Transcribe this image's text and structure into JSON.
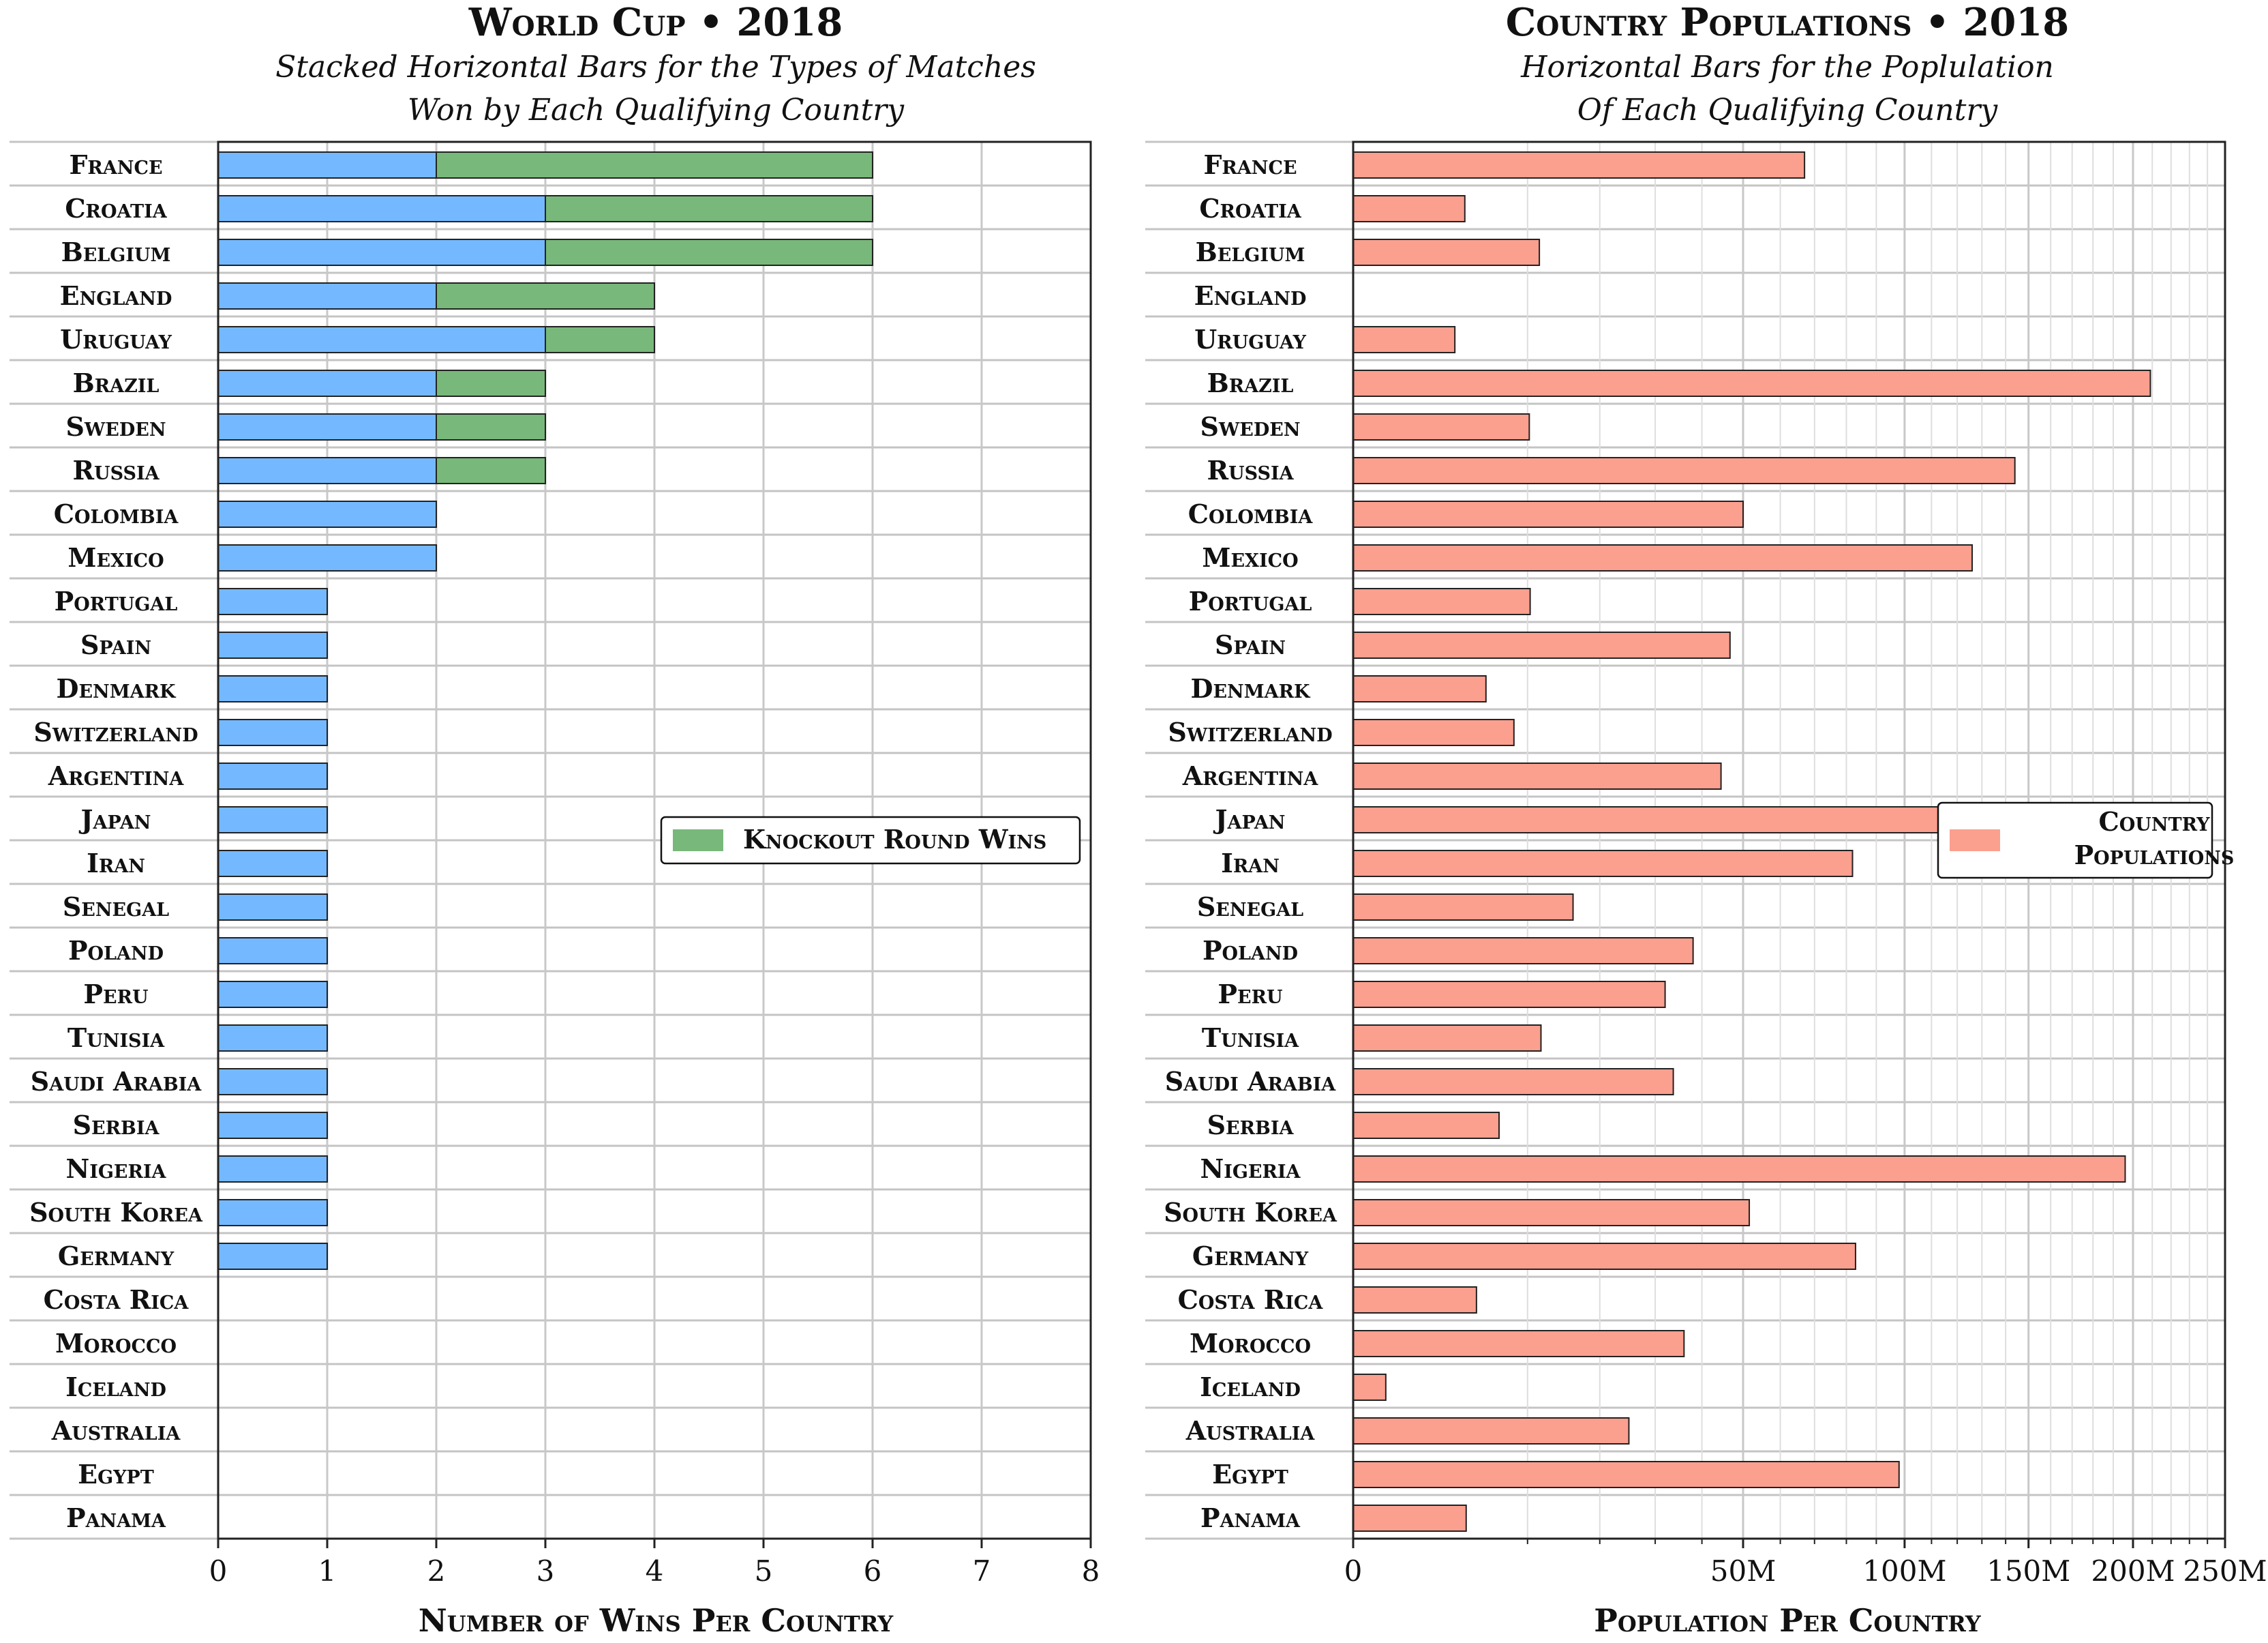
{
  "chart_data": [
    {
      "type": "bar",
      "orientation": "horizontal",
      "stacked": true,
      "title_main": "World Cup",
      "title_year": "2018",
      "subtitle_line1": "Stacked Horizontal Bars for the Types of Matches",
      "subtitle_line2": "Won by Each Qualifying Country",
      "xlabel": "Number of Wins Per Country",
      "xlim": [
        0,
        8
      ],
      "xticks": [
        0,
        1,
        2,
        3,
        4,
        5,
        6,
        7,
        8
      ],
      "grid": "vertical",
      "legend_position": "center-right",
      "categories": [
        "France",
        "Croatia",
        "Belgium",
        "England",
        "Uruguay",
        "Brazil",
        "Sweden",
        "Russia",
        "Colombia",
        "Mexico",
        "Portugal",
        "Spain",
        "Denmark",
        "Switzerland",
        "Argentina",
        "Japan",
        "Iran",
        "Senegal",
        "Poland",
        "Peru",
        "Tunisia",
        "Saudi Arabia",
        "Serbia",
        "Nigeria",
        "South Korea",
        "Germany",
        "Costa Rica",
        "Morocco",
        "Iceland",
        "Australia",
        "Egypt",
        "Panama"
      ],
      "series": [
        {
          "color": "#74b9ff",
          "values": [
            2,
            3,
            3,
            2,
            3,
            2,
            2,
            2,
            2,
            2,
            1,
            1,
            1,
            1,
            1,
            1,
            1,
            1,
            1,
            1,
            1,
            1,
            1,
            1,
            1,
            1,
            0,
            0,
            0,
            0,
            0,
            0
          ]
        },
        {
          "name": "Knockout Round Wins",
          "color": "#78b87a",
          "values": [
            4,
            3,
            3,
            2,
            1,
            1,
            1,
            1,
            0,
            0,
            0,
            0,
            0,
            0,
            0,
            0,
            0,
            0,
            0,
            0,
            0,
            0,
            0,
            0,
            0,
            0,
            0,
            0,
            0,
            0,
            0,
            0
          ]
        }
      ]
    },
    {
      "type": "bar",
      "orientation": "horizontal",
      "title_main": "Country Populations",
      "title_year": "2018",
      "subtitle_line1": "Horizontal Bars for the Poplulation",
      "subtitle_line2": "Of Each Qualifying Country",
      "xlabel": "Population Per Country",
      "xscale": "sqrt",
      "xlim": [
        0,
        250
      ],
      "xunit": "millions",
      "xticks": [
        0,
        50,
        100,
        150,
        200,
        250
      ],
      "xticklabels": [
        "0",
        "50M",
        "100M",
        "150M",
        "200M",
        "250M"
      ],
      "grid": "vertical-minor",
      "legend_position": "center-right",
      "categories": [
        "France",
        "Croatia",
        "Belgium",
        "England",
        "Uruguay",
        "Brazil",
        "Sweden",
        "Russia",
        "Colombia",
        "Mexico",
        "Portugal",
        "Spain",
        "Denmark",
        "Switzerland",
        "Argentina",
        "Japan",
        "Iran",
        "Senegal",
        "Poland",
        "Peru",
        "Tunisia",
        "Saudi Arabia",
        "Serbia",
        "Nigeria",
        "South Korea",
        "Germany",
        "Costa Rica",
        "Morocco",
        "Iceland",
        "Australia",
        "Egypt",
        "Panama"
      ],
      "series": [
        {
          "name_line1": "Country",
          "name_line2": "Populations",
          "color": "#fb9f8f",
          "values": [
            67,
            4.1,
            11.4,
            0,
            3.4,
            209,
            10.2,
            144,
            50,
            126,
            10.3,
            46.7,
            5.8,
            8.5,
            44.5,
            127,
            82,
            15.9,
            38,
            32,
            11.6,
            33.7,
            7,
            196,
            51.6,
            83,
            5,
            36,
            0.35,
            25,
            98,
            4.2
          ]
        }
      ]
    }
  ]
}
